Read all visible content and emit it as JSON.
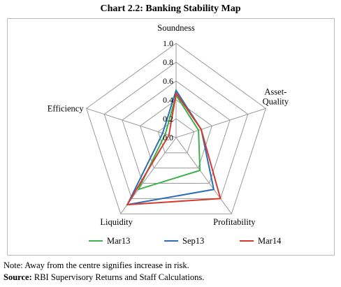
{
  "title": "Chart 2.2: Banking Stability Map",
  "chart_data": {
    "type": "radar",
    "axes": [
      "Soundness",
      "Asset-Quality",
      "Profitability",
      "Liquidity",
      "Efficiency"
    ],
    "ticks": [
      "0.0",
      "0.2",
      "0.4",
      "0.6",
      "0.8",
      "1.0"
    ],
    "range": [
      0,
      1
    ],
    "grid": true,
    "legend_position": "bottom",
    "series": [
      {
        "name": "Mar13",
        "color": "#3cb34a",
        "values": [
          0.45,
          0.25,
          0.43,
          0.68,
          0.12
        ]
      },
      {
        "name": "Sep13",
        "color": "#2e6db3",
        "values": [
          0.5,
          0.28,
          0.68,
          0.88,
          0.15
        ]
      },
      {
        "name": "Mar14",
        "color": "#d63a2f",
        "values": [
          0.47,
          0.28,
          0.8,
          0.88,
          0.08
        ]
      }
    ]
  },
  "notes": {
    "note_label": "Note:",
    "note_text": " Away from the centre signifies increase in risk.",
    "source_label": "Source:",
    "source_text": " RBI Supervisory Returns and Staff Calculations."
  }
}
